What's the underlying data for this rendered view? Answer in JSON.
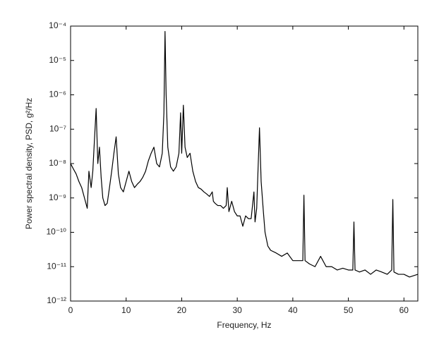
{
  "chart_data": {
    "type": "line",
    "log_y": true,
    "color": "#000000",
    "xlabel": "Frequency, Hz",
    "ylabel": "Power spectral density, PSD, g²/Hz",
    "xlim": [
      0,
      62.5
    ],
    "xticks": [
      0,
      10,
      20,
      30,
      40,
      50,
      60
    ],
    "ylim": [
      1e-12,
      0.0001
    ],
    "yticks": [
      {
        "value": 1e-12,
        "label": "10⁻¹²"
      },
      {
        "value": 1e-11,
        "label": "10⁻¹¹"
      },
      {
        "value": 1e-10,
        "label": "10⁻¹⁰"
      },
      {
        "value": 1e-09,
        "label": "10⁻⁹"
      },
      {
        "value": 1e-08,
        "label": "10⁻⁸"
      },
      {
        "value": 1e-07,
        "label": "10⁻⁷"
      },
      {
        "value": 1e-06,
        "label": "10⁻⁶"
      },
      {
        "value": 1e-05,
        "label": "10⁻⁵"
      },
      {
        "value": 0.0001,
        "label": "10⁻⁴"
      }
    ],
    "x": [
      0,
      0.5,
      1,
      1.5,
      2,
      2.5,
      3,
      3.3,
      3.7,
      4,
      4.3,
      4.6,
      4.9,
      5.2,
      5.5,
      5.8,
      6.2,
      6.6,
      7,
      7.4,
      7.8,
      8.2,
      8.6,
      9,
      9.5,
      10,
      10.5,
      11,
      11.5,
      12,
      12.5,
      13,
      13.5,
      14,
      14.5,
      15,
      15.5,
      16,
      16.5,
      16.8,
      17,
      17.2,
      17.5,
      18,
      18.5,
      19,
      19.5,
      19.8,
      20,
      20.3,
      20.6,
      21,
      21.5,
      22,
      22.5,
      23,
      23.5,
      24,
      24.5,
      25,
      25.5,
      25.7,
      26,
      26.5,
      27,
      27.5,
      28,
      28.2,
      28.5,
      29,
      29.5,
      30,
      30.5,
      31,
      31.5,
      32,
      32.5,
      33,
      33.2,
      33.5,
      34,
      34.3,
      34.7,
      35,
      35.5,
      36,
      37,
      38,
      39,
      40,
      41,
      41.8,
      42,
      42.2,
      43,
      44,
      45,
      46,
      47,
      48,
      49,
      50,
      50.8,
      51,
      51.2,
      52,
      53,
      54,
      55,
      56,
      57,
      57.8,
      58,
      58.2,
      59,
      60,
      61,
      62.5
    ],
    "values": [
      1e-08,
      7e-09,
      5e-09,
      3e-09,
      2e-09,
      1e-09,
      5e-10,
      6e-09,
      2e-09,
      6e-09,
      5e-08,
      4e-07,
      1e-08,
      3e-08,
      4e-09,
      1e-09,
      6e-10,
      7e-10,
      2e-09,
      6e-09,
      2e-08,
      6e-08,
      5e-09,
      2e-09,
      1.5e-09,
      3e-09,
      6e-09,
      3e-09,
      2e-09,
      2.5e-09,
      3e-09,
      4e-09,
      6e-09,
      1.2e-08,
      2e-08,
      3e-08,
      1e-08,
      8e-09,
      2e-08,
      3e-07,
      7e-05,
      1e-06,
      3e-08,
      8e-09,
      6e-09,
      8e-09,
      2e-08,
      3e-07,
      2e-08,
      5e-07,
      3e-08,
      1.5e-08,
      2e-08,
      6e-09,
      3e-09,
      2e-09,
      1.8e-09,
      1.5e-09,
      1.3e-09,
      1.1e-09,
      1.5e-09,
      8e-10,
      7e-10,
      6e-10,
      6e-10,
      5e-10,
      6e-10,
      2e-09,
      4e-10,
      8e-10,
      4e-10,
      3e-10,
      3e-10,
      1.5e-10,
      3e-10,
      2.5e-10,
      2.5e-10,
      1.5e-09,
      2e-10,
      5e-10,
      1.1e-07,
      3e-09,
      4e-10,
      1e-10,
      4e-11,
      3e-11,
      2.5e-11,
      2e-11,
      2.5e-11,
      1.5e-11,
      1.5e-11,
      1.5e-11,
      1.2e-09,
      1.5e-11,
      1.2e-11,
      1e-11,
      2e-11,
      1e-11,
      1e-11,
      8e-12,
      9e-12,
      8e-12,
      8e-12,
      2e-10,
      8e-12,
      7e-12,
      8e-12,
      6e-12,
      8e-12,
      7e-12,
      6e-12,
      8e-12,
      9e-10,
      7e-12,
      6e-12,
      6e-12,
      5e-12,
      6e-12
    ]
  }
}
